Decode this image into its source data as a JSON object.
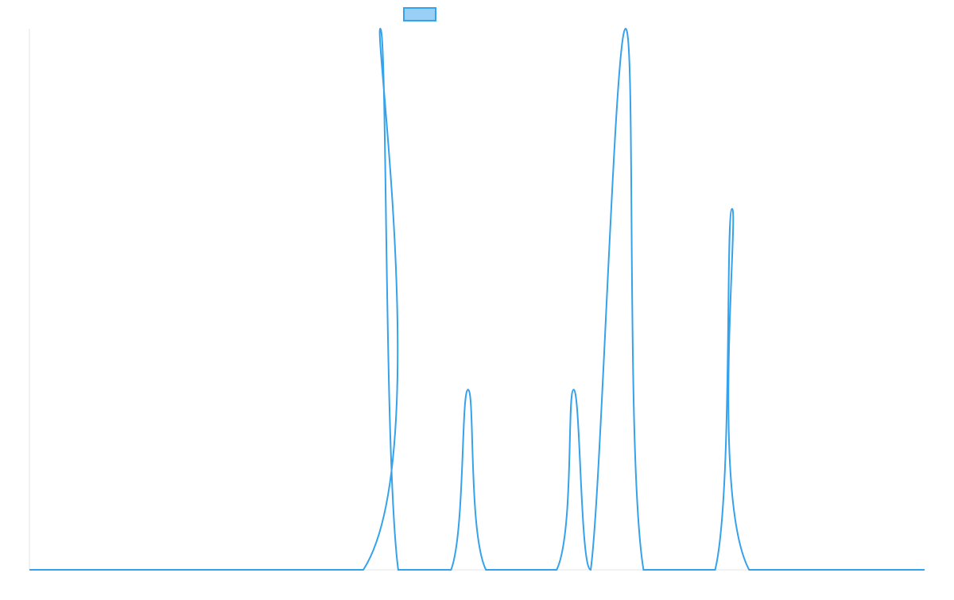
{
  "chart_data": {
    "type": "line",
    "title": "",
    "xlabel": "",
    "ylabel": "",
    "legend": {
      "placement": "top-center",
      "entries": [
        ""
      ]
    },
    "grid": false,
    "xlim": [
      0,
      1000
    ],
    "ylim": [
      0,
      1
    ],
    "colors": {
      "line": "#36a2eb",
      "legend_fill": "#9ad0f5",
      "axis": "#e6e6e6"
    },
    "series": [
      {
        "name": "",
        "peaks": [
          {
            "x": 392,
            "y": 1.0
          },
          {
            "x": 490,
            "y": 0.333
          },
          {
            "x": 608,
            "y": 0.333
          },
          {
            "x": 666,
            "y": 1.0
          },
          {
            "x": 785,
            "y": 0.667
          }
        ],
        "x": [
          0,
          373,
          392,
          412,
          471,
          490,
          510,
          589,
          608,
          627,
          666,
          686,
          766,
          785,
          804,
          1000
        ],
        "y": [
          0,
          0,
          1.0,
          0,
          0,
          0.333,
          0,
          0,
          0.333,
          0,
          1.0,
          0,
          0,
          0.667,
          0,
          0
        ]
      }
    ]
  }
}
